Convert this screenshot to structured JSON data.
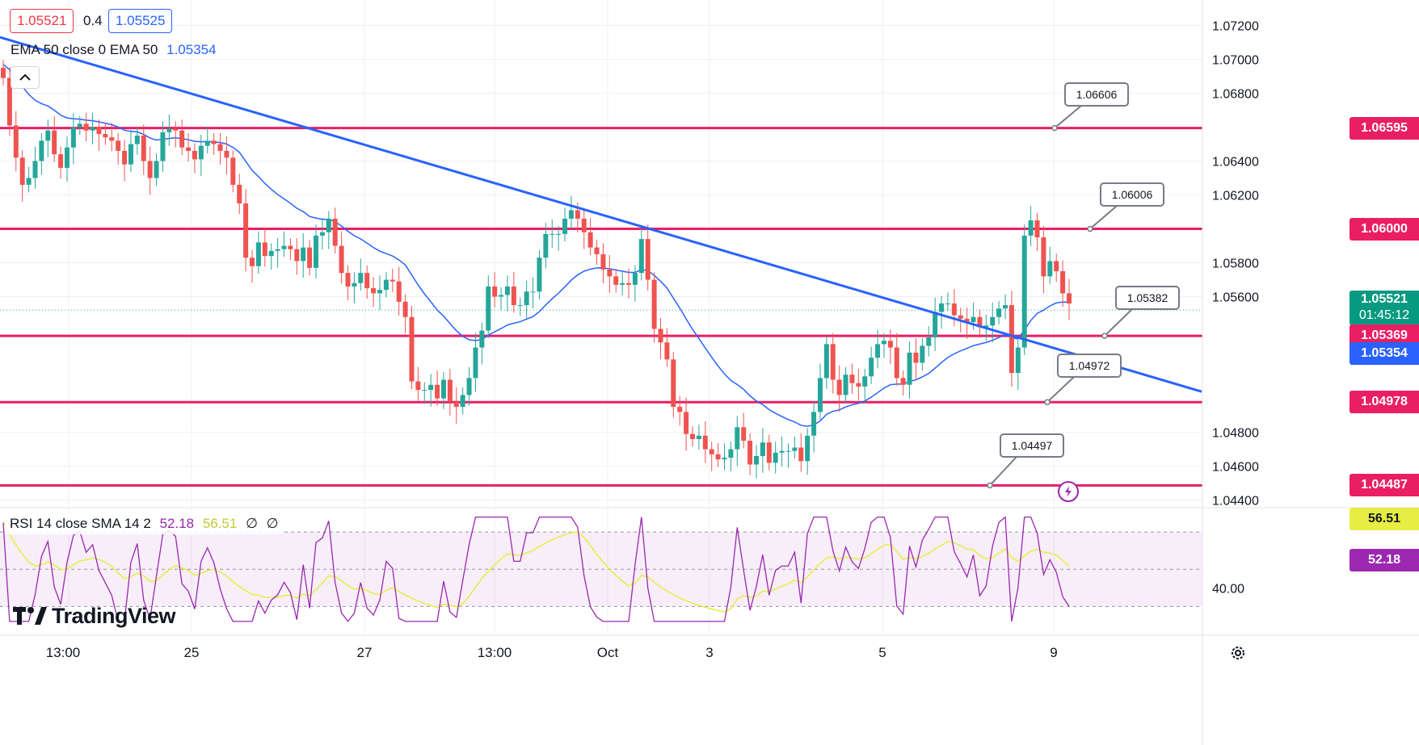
{
  "header": {
    "bid": "1.05521",
    "spread": "0.4",
    "ask": "1.05525",
    "ema_label": "EMA 50 close 0 EMA 50",
    "ema_value": "1.05354",
    "rsi_label": "RSI 14 close SMA 14 2",
    "rsi_value": "52.18",
    "rsi_sma_value": "56.51",
    "rsi_extra1": "∅",
    "rsi_extra2": "∅"
  },
  "brand": {
    "name": "TradingView"
  },
  "colors": {
    "up": "#26a69a",
    "down": "#ef5350",
    "level": "#e91e63",
    "trend": "#2962ff",
    "ema": "#2962ff",
    "rsi": "#9c27b0",
    "rsi_sma": "#e6ee43"
  },
  "axis": {
    "price_ticks": [
      "1.07200",
      "1.07000",
      "1.06800",
      "1.06400",
      "1.06200",
      "1.05800",
      "1.05600",
      "1.04800",
      "1.04600",
      "1.04400"
    ],
    "rsi_ticks": [
      "40.00"
    ],
    "time_ticks": [
      "13:00",
      "25",
      "27",
      "13:00",
      "Oct",
      "3",
      "5",
      "9"
    ]
  },
  "price_pills": {
    "last": "1.05521",
    "countdown": "01:45:12",
    "ema": "1.05354"
  },
  "rsi_pills": {
    "sma": "56.51",
    "rsi": "52.18"
  },
  "chart_data": {
    "type": "candlestick",
    "symbol_hint": "EURUSD",
    "ylim": [
      1.0436,
      1.0735
    ],
    "levels": [
      1.06595,
      1.06,
      1.05369,
      1.04978,
      1.04487
    ],
    "callouts": [
      "1.06606",
      "1.06006",
      "1.05382",
      "1.04972",
      "1.04497"
    ],
    "trendline": {
      "from": [
        0,
        1.0713
      ],
      "to": [
        1487,
        1.0504
      ]
    },
    "ema50_last": 1.05354,
    "last_price": 1.05521,
    "rsi": {
      "period": 14,
      "value": 52.18,
      "sma": 56.51,
      "bands": [
        70,
        50,
        30
      ]
    },
    "closes": [
      1.0689,
      1.0661,
      1.0642,
      1.0626,
      1.063,
      1.064,
      1.0652,
      1.0658,
      1.0644,
      1.0636,
      1.0648,
      1.066,
      1.0662,
      1.0658,
      1.066,
      1.0656,
      1.0654,
      1.0652,
      1.0646,
      1.0638,
      1.065,
      1.0655,
      1.064,
      1.063,
      1.064,
      1.0657,
      1.0659,
      1.0658,
      1.0648,
      1.0646,
      1.0641,
      1.0649,
      1.0652,
      1.065,
      1.0646,
      1.0642,
      1.0626,
      1.0615,
      1.0583,
      1.0578,
      1.0592,
      1.0584,
      1.0587,
      1.0588,
      1.059,
      1.0588,
      1.0581,
      1.0589,
      1.0577,
      1.0596,
      1.0598,
      1.0606,
      1.059,
      1.0574,
      1.0566,
      1.0568,
      1.0574,
      1.0565,
      1.0562,
      1.0564,
      1.057,
      1.0569,
      1.0557,
      1.0548,
      1.051,
      1.0505,
      1.0505,
      1.0508,
      1.05,
      1.0511,
      1.0498,
      1.0495,
      1.0502,
      1.0512,
      1.053,
      1.054,
      1.0566,
      1.056,
      1.0561,
      1.0566,
      1.0555,
      1.0555,
      1.0563,
      1.0563,
      1.0583,
      1.0597,
      1.0597,
      1.0597,
      1.0606,
      1.0611,
      1.0606,
      1.0598,
      1.0589,
      1.0585,
      1.0576,
      1.0572,
      1.0567,
      1.0568,
      1.0567,
      1.0574,
      1.0594,
      1.057,
      1.0541,
      1.0533,
      1.0523,
      1.0495,
      1.0492,
      1.0479,
      1.0476,
      1.0478,
      1.047,
      1.0467,
      1.0464,
      1.0465,
      1.047,
      1.0483,
      1.0475,
      1.0461,
      1.0466,
      1.0474,
      1.0462,
      1.0468,
      1.0469,
      1.0469,
      1.0471,
      1.0463,
      1.0478,
      1.0492,
      1.0512,
      1.0532,
      1.0511,
      1.0502,
      1.0514,
      1.0509,
      1.0507,
      1.0513,
      1.0524,
      1.0532,
      1.0534,
      1.053,
      1.0512,
      1.0508,
      1.0527,
      1.0521,
      1.0531,
      1.0536,
      1.0551,
      1.0556,
      1.0556,
      1.0549,
      1.0547,
      1.0545,
      1.0548,
      1.0542,
      1.0543,
      1.0548,
      1.0553,
      1.0555,
      1.0515,
      1.053,
      1.0596,
      1.0605,
      1.0595,
      1.0572,
      1.0581,
      1.0575,
      1.0562,
      1.0556
    ]
  }
}
